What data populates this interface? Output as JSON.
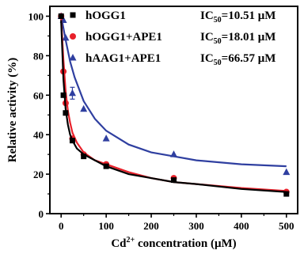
{
  "chart_data": {
    "type": "scatter",
    "xlabel_parts": {
      "pre": "Cd",
      "sup": "2+",
      "post": " concentration (μM)"
    },
    "ylabel": "Relative activity (%)",
    "xlim": [
      -25,
      525
    ],
    "ylim": [
      0,
      105
    ],
    "x_ticks": [
      0,
      100,
      200,
      300,
      400,
      500
    ],
    "x_tick_labels": [
      "0",
      "100",
      "200",
      "300",
      "400",
      "500"
    ],
    "y_ticks": [
      0,
      20,
      40,
      60,
      80,
      100
    ],
    "y_tick_labels": [
      "0",
      "20",
      "40",
      "60",
      "80",
      "100"
    ],
    "grid": false,
    "legend_position": "top-right",
    "series": [
      {
        "name": "hOGG1",
        "ic50_label": "IC",
        "ic50_sub": "50",
        "ic50_value": "=10.51 μM",
        "color": "#000000",
        "marker": "square",
        "x": [
          0,
          5,
          10,
          25,
          50,
          100,
          250,
          500
        ],
        "y": [
          100,
          60,
          51,
          37,
          29,
          24,
          17,
          10
        ],
        "fit": {
          "x": [
            0,
            5,
            10,
            15,
            20,
            25,
            35,
            50,
            75,
            100,
            150,
            200,
            250,
            300,
            400,
            500
          ],
          "y": [
            98,
            68,
            53,
            45,
            40,
            37,
            33,
            30,
            27,
            24,
            20,
            18,
            16,
            15,
            12.5,
            11
          ]
        }
      },
      {
        "name": "hOGG1+APE1",
        "ic50_label": "IC",
        "ic50_sub": "50",
        "ic50_value": "=18.01 μM",
        "color": "#e8202a",
        "marker": "circle",
        "x": [
          0,
          5,
          10,
          25,
          50,
          100,
          250,
          500
        ],
        "y": [
          100,
          72,
          56,
          38,
          30,
          25,
          18,
          11
        ],
        "fit": {
          "x": [
            0,
            5,
            10,
            15,
            20,
            25,
            35,
            50,
            75,
            100,
            150,
            200,
            250,
            300,
            400,
            500
          ],
          "y": [
            99,
            78,
            62,
            52,
            46,
            41,
            36,
            31,
            27,
            25,
            21,
            18,
            16,
            15,
            13,
            11.5
          ]
        }
      },
      {
        "name": "hAAG1+APE1",
        "ic50_label": "IC",
        "ic50_sub": "50",
        "ic50_value": "=66.57 μM",
        "color": "#2f3fa0",
        "marker": "triangle",
        "x": [
          0,
          5,
          10,
          25,
          50,
          100,
          250,
          500
        ],
        "y": [
          100,
          98,
          89,
          61,
          53,
          38,
          30,
          21
        ],
        "fit": {
          "x": [
            0,
            5,
            10,
            20,
            30,
            50,
            75,
            100,
            150,
            200,
            250,
            300,
            400,
            500
          ],
          "y": [
            100,
            94,
            88,
            77,
            69,
            57,
            48,
            42,
            35,
            31,
            29,
            27,
            25,
            24
          ]
        },
        "error": [
          0,
          0,
          0,
          3,
          0,
          0,
          0,
          0
        ]
      }
    ]
  }
}
